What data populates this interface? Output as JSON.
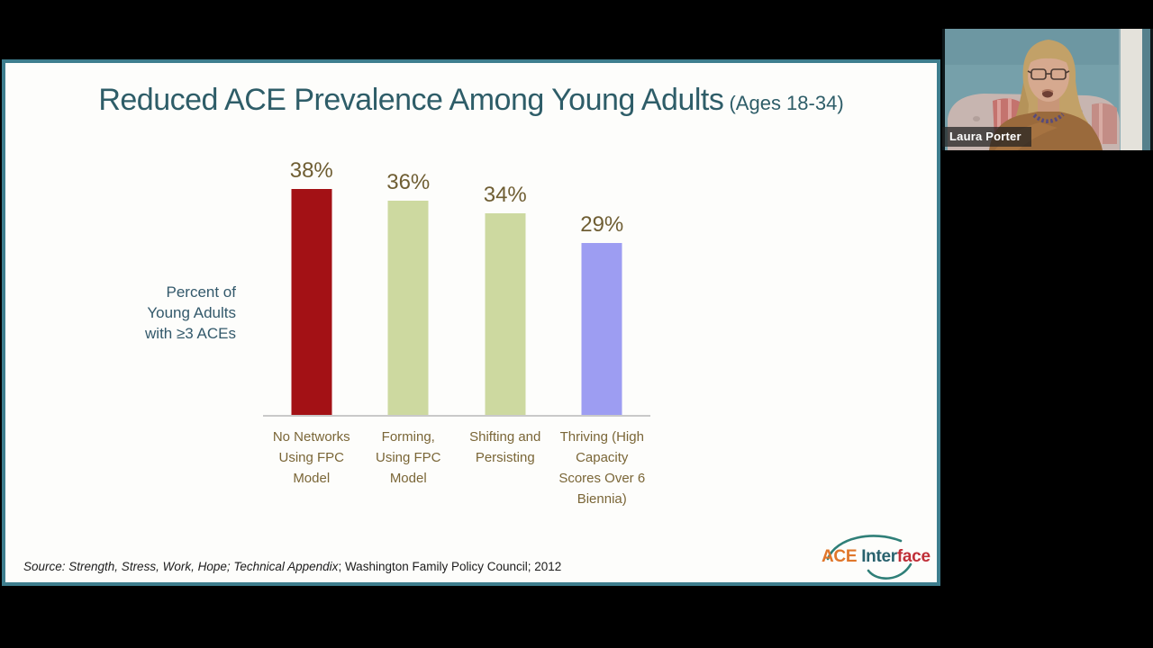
{
  "slide": {
    "title": "Reduced ACE Prevalence Among Young Adults",
    "title_suffix": " (Ages 18-34)",
    "title_color": "#2e5d68",
    "border_color": "#3e7e8e",
    "source": {
      "italic": "Source: Strength, Stress, Work, Hope; Technical Appendix",
      "regular": "; Washington Family Policy Council; 2012"
    },
    "logo": {
      "part1": "ACE",
      "part2": "Inter",
      "part3": "face",
      "part1_color": "#e0762a",
      "part2_color": "#29626e",
      "part3_color": "#c02f38",
      "arc_color": "#2f7f78"
    }
  },
  "chart_data": {
    "type": "bar",
    "title": "Reduced ACE Prevalence Among Young Adults (Ages 18-34)",
    "categories": [
      "No Networks Using FPC Model",
      "Forming, Using FPC Model",
      "Shifting and Persisting",
      "Thriving (High Capacity Scores Over 6 Biennia)"
    ],
    "values": [
      38,
      36,
      34,
      29
    ],
    "value_labels": [
      "38%",
      "36%",
      "34%",
      "29%"
    ],
    "bar_colors": [
      "#a31115",
      "#cdd9a0",
      "#cdd9a0",
      "#9d9df2"
    ],
    "ylabel_lines": [
      "Percent of",
      "Young Adults",
      "with ≥3 ACEs"
    ],
    "ylabel": "Percent of Young Adults with ≥3 ACEs",
    "xlabel": "",
    "ylim": [
      0,
      40
    ],
    "grid": false,
    "legend": false,
    "value_label_color": "#6f5e33",
    "category_label_color": "#7a6637"
  },
  "webcam": {
    "name": "Laura Porter"
  }
}
